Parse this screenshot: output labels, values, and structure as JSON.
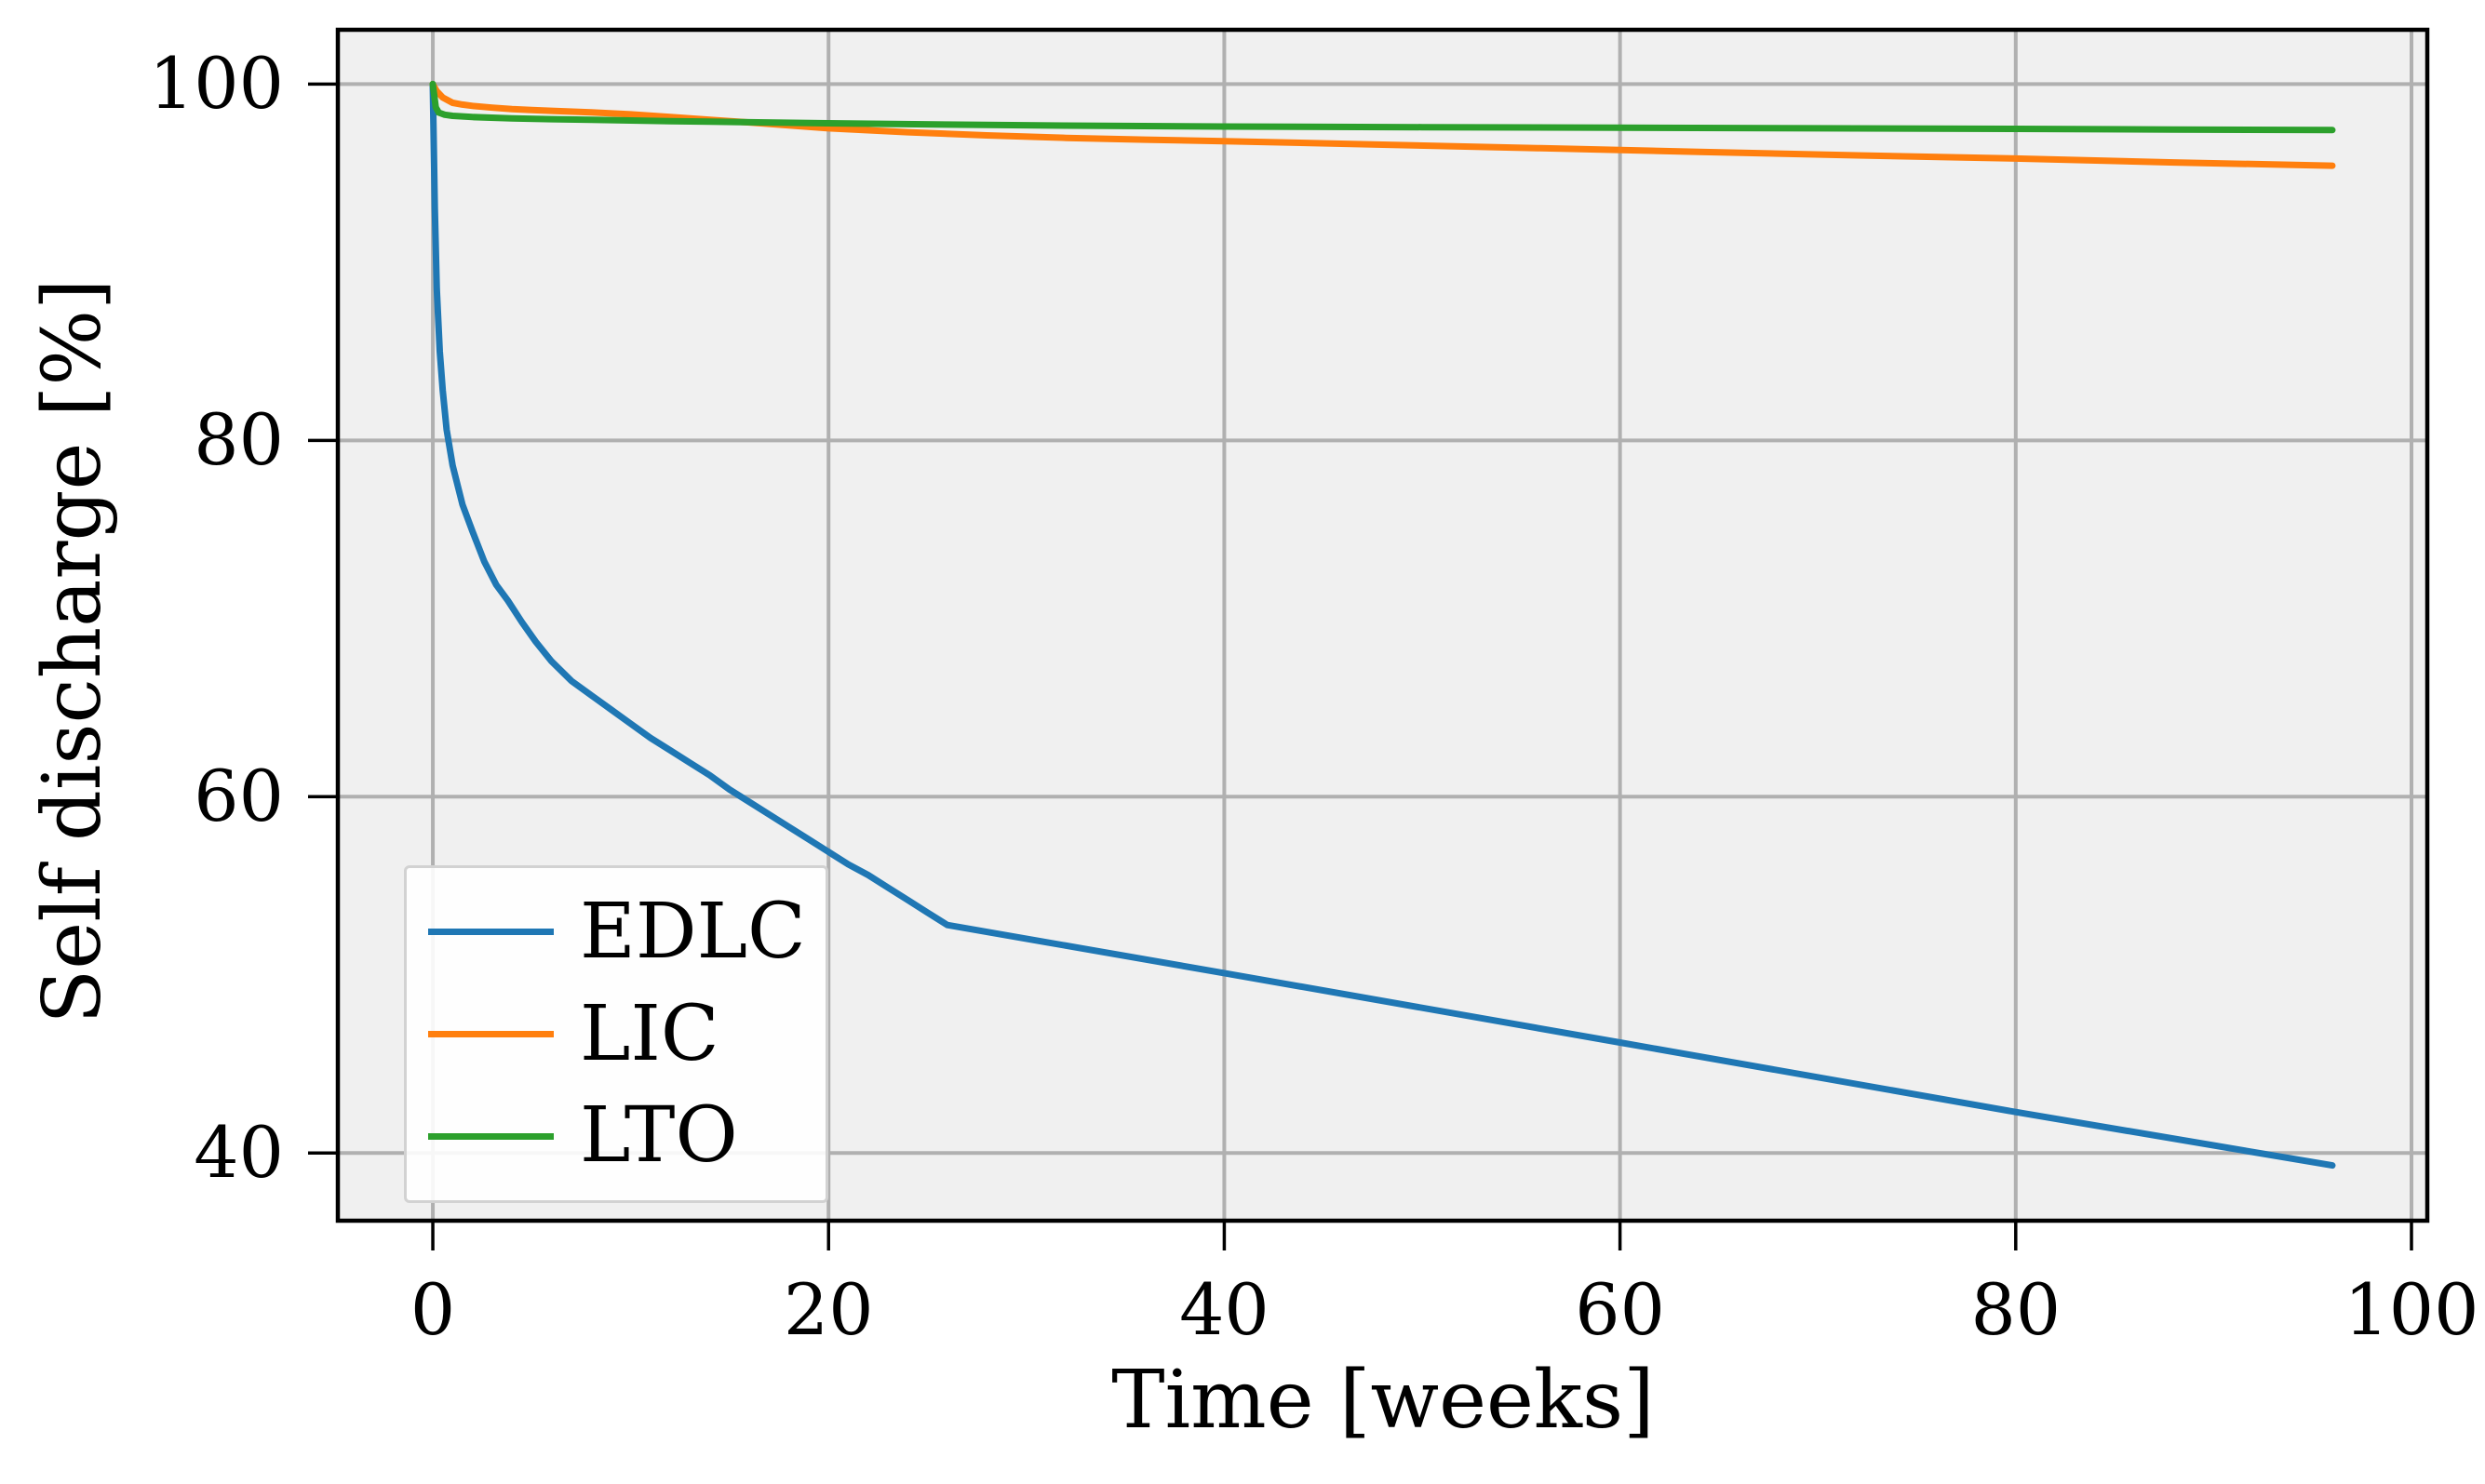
{
  "figure": {
    "background_color": "#ffffff",
    "plot_background_color": "#f0f0f0",
    "grid_color": "#b0b0b0",
    "spine_color": "#000000"
  },
  "chart_data": {
    "type": "line",
    "title": "",
    "xlabel": "Time [weeks]",
    "ylabel": "Self discharge [%]",
    "xlim": [
      -4.8,
      100.8
    ],
    "ylim": [
      36.2,
      103.05
    ],
    "xticks": [
      0,
      20,
      40,
      60,
      80,
      100
    ],
    "yticks": [
      40,
      60,
      80,
      100
    ],
    "grid": true,
    "legend_position": "lower left",
    "series": [
      {
        "name": "EDLC",
        "color": "#1f77b4",
        "points": [
          [
            0,
            100
          ],
          [
            0.1,
            93
          ],
          [
            0.2,
            88.5
          ],
          [
            0.35,
            85
          ],
          [
            0.5,
            82.8
          ],
          [
            0.7,
            80.6
          ],
          [
            1,
            78.6
          ],
          [
            1.5,
            76.4
          ],
          [
            2,
            74.9
          ],
          [
            2.6,
            73.2
          ],
          [
            3.2,
            71.9
          ],
          [
            3.8,
            71.0
          ],
          [
            4.5,
            69.8
          ],
          [
            5.2,
            68.7
          ],
          [
            6,
            67.6
          ],
          [
            7,
            66.5
          ],
          [
            8,
            65.7
          ],
          [
            9,
            64.9
          ],
          [
            10,
            64.1
          ],
          [
            11,
            63.3
          ],
          [
            12,
            62.6
          ],
          [
            13,
            61.9
          ],
          [
            14,
            61.2
          ],
          [
            15,
            60.4
          ],
          [
            16,
            59.7
          ],
          [
            17,
            59.0
          ],
          [
            18,
            58.3
          ],
          [
            19,
            57.6
          ],
          [
            20,
            56.9
          ],
          [
            21,
            56.2
          ],
          [
            22,
            55.6
          ],
          [
            23,
            54.9
          ],
          [
            24,
            54.2
          ],
          [
            25,
            53.5
          ],
          [
            26,
            52.8
          ],
          [
            40,
            50.1
          ],
          [
            60,
            46.2
          ],
          [
            80,
            42.3
          ],
          [
            96,
            39.3
          ]
        ]
      },
      {
        "name": "LIC",
        "color": "#ff7f0e",
        "points": [
          [
            0,
            100
          ],
          [
            0.2,
            99.6
          ],
          [
            0.5,
            99.25
          ],
          [
            1,
            98.95
          ],
          [
            1.5,
            98.85
          ],
          [
            2,
            98.78
          ],
          [
            3,
            98.68
          ],
          [
            4,
            98.6
          ],
          [
            5,
            98.55
          ],
          [
            6,
            98.5
          ],
          [
            8,
            98.42
          ],
          [
            10,
            98.3
          ],
          [
            12,
            98.15
          ],
          [
            14,
            98.0
          ],
          [
            16,
            97.85
          ],
          [
            18,
            97.68
          ],
          [
            20,
            97.52
          ],
          [
            24,
            97.3
          ],
          [
            28,
            97.12
          ],
          [
            32,
            96.98
          ],
          [
            36,
            96.88
          ],
          [
            40,
            96.8
          ],
          [
            48,
            96.6
          ],
          [
            56,
            96.4
          ],
          [
            64,
            96.2
          ],
          [
            72,
            96.0
          ],
          [
            80,
            95.82
          ],
          [
            88,
            95.6
          ],
          [
            96,
            95.42
          ]
        ]
      },
      {
        "name": "LTO",
        "color": "#2ca02c",
        "points": [
          [
            0,
            100
          ],
          [
            0.15,
            98.7
          ],
          [
            0.3,
            98.4
          ],
          [
            0.6,
            98.28
          ],
          [
            1,
            98.22
          ],
          [
            2,
            98.15
          ],
          [
            4,
            98.08
          ],
          [
            6,
            98.03
          ],
          [
            8,
            98.0
          ],
          [
            10,
            97.96
          ],
          [
            12,
            97.92
          ],
          [
            14,
            97.89
          ],
          [
            16,
            97.86
          ],
          [
            20,
            97.8
          ],
          [
            26,
            97.73
          ],
          [
            32,
            97.67
          ],
          [
            40,
            97.62
          ],
          [
            50,
            97.58
          ],
          [
            60,
            97.55
          ],
          [
            70,
            97.52
          ],
          [
            80,
            97.49
          ],
          [
            88,
            97.45
          ],
          [
            96,
            97.42
          ]
        ]
      }
    ]
  }
}
